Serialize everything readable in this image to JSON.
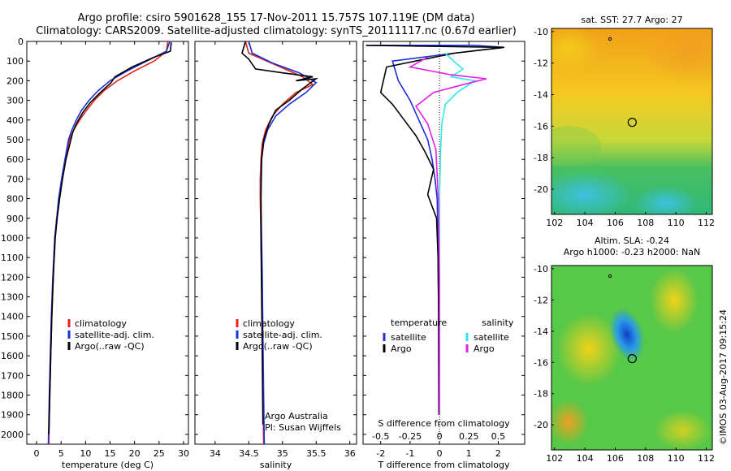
{
  "header": {
    "line1": "Argo profile: csiro 5901628_155 17-Nov-2011 15.757S 107.119E (DM data)",
    "line2": "Climatology: CARS2009. Satellite-adjusted climatology: synTS_20111117.nc (0.67d earlier)"
  },
  "credit": "©IMOS 03-Aug-2017 09:15:24",
  "colors": {
    "climatology": "#e0231c",
    "satellite": "#1c2fd6",
    "argo": "#000000",
    "sal_satellite": "#33e6e6",
    "sal_argo": "#e61ee6"
  },
  "chart_data": [
    {
      "type": "line",
      "panel": "temperature",
      "xlabel": "temperature (deg C)",
      "xlim": [
        -2,
        31
      ],
      "xticks": [
        0,
        5,
        10,
        15,
        20,
        25,
        30
      ],
      "ylim": [
        2050,
        0
      ],
      "yticks": [
        0,
        100,
        200,
        300,
        400,
        500,
        600,
        700,
        800,
        900,
        1000,
        1100,
        1200,
        1300,
        1400,
        1500,
        1600,
        1700,
        1800,
        1900,
        2000
      ],
      "legend": [
        "climatology",
        "satellite-adj. clim.",
        "Argo(..raw -QC)"
      ],
      "series": [
        {
          "name": "climatology",
          "color_key": "climatology",
          "x": [
            26.8,
            26.5,
            24.0,
            20.0,
            16.5,
            13.8,
            11.8,
            10.2,
            8.8,
            7.6,
            6.7,
            5.9,
            5.2,
            4.6,
            4.1,
            3.7,
            3.4,
            3.1,
            2.9,
            2.7,
            2.5
          ],
          "y": [
            0,
            50,
            100,
            150,
            200,
            250,
            300,
            350,
            400,
            450,
            500,
            600,
            700,
            800,
            900,
            1000,
            1200,
            1400,
            1600,
            1800,
            2050
          ]
        },
        {
          "name": "satellite-adj. clim.",
          "color_key": "satellite",
          "x": [
            27.2,
            26.5,
            22.5,
            18.5,
            15.0,
            12.6,
            10.7,
            9.2,
            8.1,
            7.2,
            6.5,
            5.8,
            5.1,
            4.5,
            4.1,
            3.7,
            3.3,
            3.0,
            2.8,
            2.6,
            2.4
          ],
          "y": [
            0,
            50,
            100,
            150,
            200,
            250,
            300,
            350,
            400,
            450,
            500,
            600,
            700,
            800,
            900,
            1000,
            1200,
            1400,
            1600,
            1800,
            2050
          ]
        },
        {
          "name": "Argo(..raw -QC)",
          "color_key": "argo",
          "x": [
            27.5,
            27.3,
            24.0,
            19.5,
            16.0,
            15.2,
            13.0,
            11.0,
            9.5,
            8.3,
            7.4,
            6.8,
            6.0,
            5.3,
            4.7,
            4.2,
            3.8,
            3.4,
            3.1,
            2.9,
            2.7,
            2.5
          ],
          "y": [
            5,
            50,
            80,
            130,
            180,
            210,
            260,
            310,
            360,
            410,
            460,
            520,
            600,
            700,
            800,
            900,
            1000,
            1200,
            1400,
            1600,
            1800,
            2000
          ]
        }
      ]
    },
    {
      "type": "line",
      "panel": "salinity",
      "xlabel": "salinity",
      "xlim": [
        33.7,
        36.1
      ],
      "xticks": [
        34,
        34.5,
        35,
        35.5,
        36
      ],
      "ylim": [
        2050,
        0
      ],
      "legend": [
        "climatology",
        "satellite-adj. clim.",
        "Argo(..raw -QC)"
      ],
      "annotations": [
        "Argo Australia",
        "PI: Susan Wijffels"
      ],
      "series": [
        {
          "name": "climatology",
          "color_key": "climatology",
          "x": [
            34.45,
            34.5,
            34.9,
            35.3,
            35.45,
            35.2,
            35.0,
            34.85,
            34.75,
            34.7,
            34.68,
            34.67,
            34.67,
            34.68,
            34.69,
            34.7,
            34.71,
            34.72
          ],
          "y": [
            0,
            60,
            120,
            180,
            220,
            260,
            320,
            380,
            450,
            520,
            600,
            700,
            800,
            1000,
            1200,
            1500,
            1800,
            2050
          ]
        },
        {
          "name": "satellite-adj. clim.",
          "color_key": "satellite",
          "x": [
            34.5,
            34.55,
            34.85,
            35.25,
            35.5,
            35.35,
            35.1,
            34.9,
            34.78,
            34.72,
            34.69,
            34.68,
            34.68,
            34.69,
            34.7,
            34.71,
            34.72,
            34.73
          ],
          "y": [
            0,
            60,
            110,
            160,
            210,
            260,
            320,
            380,
            450,
            520,
            600,
            700,
            800,
            1000,
            1200,
            1500,
            1800,
            2050
          ]
        },
        {
          "name": "Argo(..raw -QC)",
          "color_key": "argo",
          "x": [
            34.45,
            34.4,
            34.5,
            34.6,
            35.0,
            35.45,
            35.2,
            35.5,
            35.3,
            35.1,
            34.9,
            34.8,
            34.72,
            34.69,
            34.68,
            34.68,
            34.69,
            34.7,
            34.71
          ],
          "y": [
            0,
            60,
            90,
            140,
            160,
            180,
            200,
            190,
            240,
            300,
            350,
            420,
            500,
            600,
            800,
            1000,
            1300,
            1600,
            1950
          ]
        }
      ]
    },
    {
      "type": "line",
      "panel": "difference",
      "xlabel": "T difference from climatology",
      "xlabel_top": "S difference from climatology",
      "xlim": [
        -2.6,
        2.9
      ],
      "xticks": [
        -2,
        -1,
        0,
        1,
        2
      ],
      "xlim_top": [
        -0.65,
        0.725
      ],
      "xticks_top": [
        -0.5,
        -0.25,
        0,
        0.25,
        0.5
      ],
      "xticklabels_top": [
        "-0.5",
        "-0.25",
        "0",
        "0.25",
        "0.5"
      ],
      "ylim": [
        2050,
        0
      ],
      "legend_titles": [
        "temperature",
        "salinity"
      ],
      "legend_temperature": [
        "satellite",
        "Argo"
      ],
      "legend_salinity": [
        "satellite",
        "Argo"
      ],
      "series": [
        {
          "name": "satellite",
          "group": "temperature",
          "color_key": "satellite",
          "axis": "T",
          "x": [
            -2.5,
            1.2,
            2.2,
            0.5,
            -1.6,
            -1.4,
            -1.0,
            -0.7,
            -0.4,
            -0.25,
            -0.15,
            -0.08,
            -0.05,
            -0.03,
            -0.02
          ],
          "y": [
            20,
            20,
            30,
            60,
            100,
            200,
            300,
            400,
            500,
            600,
            700,
            800,
            1000,
            1400,
            1900
          ]
        },
        {
          "name": "Argo",
          "group": "temperature",
          "color_key": "argo",
          "axis": "T",
          "x": [
            -2.5,
            2.2,
            0.5,
            -1.8,
            -2.0,
            -1.6,
            -1.2,
            -0.8,
            -0.5,
            -0.2,
            -0.4,
            -0.1,
            -0.05,
            -0.03,
            -0.02
          ],
          "y": [
            20,
            30,
            60,
            130,
            260,
            320,
            400,
            480,
            560,
            650,
            780,
            900,
            1100,
            1400,
            1900
          ]
        },
        {
          "name": "satellite",
          "group": "salinity",
          "color_key": "sal_satellite",
          "axis": "S",
          "x": [
            0.05,
            0.12,
            0.2,
            0.1,
            0.3,
            0.15,
            0.05,
            0.02,
            0.01,
            0.0,
            0.0,
            0.0
          ],
          "y": [
            60,
            100,
            140,
            180,
            200,
            260,
            320,
            420,
            550,
            800,
            1200,
            1900
          ]
        },
        {
          "name": "Argo",
          "group": "salinity",
          "color_key": "sal_argo",
          "axis": "S",
          "x": [
            -0.1,
            -0.25,
            0.1,
            0.4,
            0.2,
            -0.05,
            -0.2,
            -0.1,
            -0.03,
            -0.01,
            0.0,
            0.0
          ],
          "y": [
            80,
            130,
            170,
            190,
            220,
            260,
            330,
            420,
            550,
            800,
            1200,
            1900
          ]
        }
      ]
    },
    {
      "type": "heatmap",
      "panel": "sst-map",
      "title": "sat. SST: 27.7 Argo: 27",
      "xlim": [
        101.8,
        112.4
      ],
      "ylim": [
        -21.6,
        -9.8
      ],
      "xticks": [
        102,
        104,
        106,
        108,
        110,
        112
      ],
      "yticks": [
        -10,
        -12,
        -14,
        -16,
        -18,
        -20
      ],
      "argo_position": {
        "lon": 107.119,
        "lat": -15.757
      }
    },
    {
      "type": "heatmap",
      "panel": "sla-map",
      "title_line1": "Altim. SLA: -0.24",
      "title_line2": "Argo h1000: -0.23 h2000: NaN",
      "xlim": [
        101.8,
        112.4
      ],
      "ylim": [
        -21.6,
        -9.8
      ],
      "xticks": [
        102,
        104,
        106,
        108,
        110,
        112
      ],
      "yticks": [
        -10,
        -12,
        -14,
        -16,
        -18,
        -20
      ],
      "argo_position": {
        "lon": 107.119,
        "lat": -15.757
      }
    }
  ]
}
